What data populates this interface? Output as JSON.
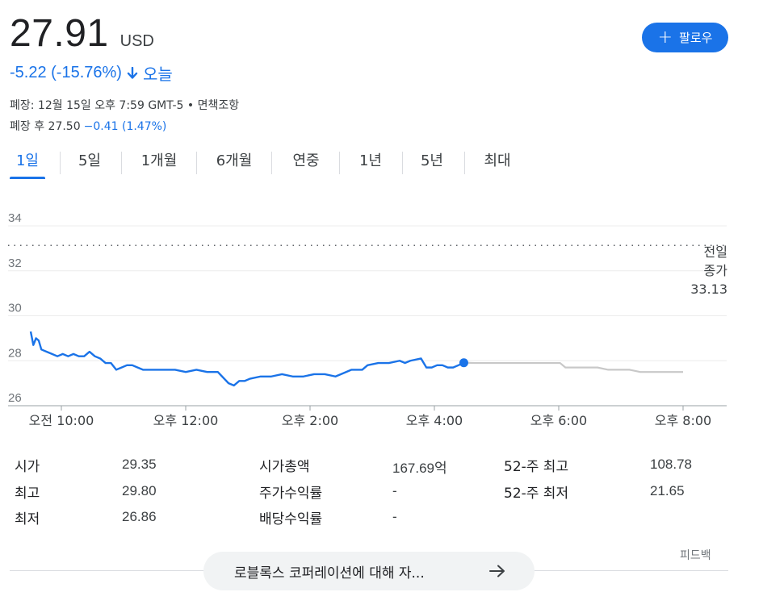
{
  "quote": {
    "price": "27.91",
    "currency": "USD",
    "change": "-5.22 (-15.76%)",
    "period": "오늘",
    "closed_info": "폐장: 12월 15일 오후 7:59 GMT-5 • 면책조항",
    "after_hours_label": "폐장 후 27.50",
    "after_hours_change": "−0.41 (1.47%)"
  },
  "follow_button": {
    "label": "팔로우"
  },
  "tabs": [
    "1일",
    "5일",
    "1개월",
    "6개월",
    "연중",
    "1년",
    "5년",
    "최대"
  ],
  "active_tab": "1일",
  "colors": {
    "accent": "#1a73e8",
    "after_hours_line": "#c8c8c8",
    "grid": "#e8eaed"
  },
  "chart_data": {
    "type": "line",
    "ylim": [
      26,
      34
    ],
    "y_ticks": [
      "34",
      "32",
      "30",
      "28",
      "26"
    ],
    "x_ticks": [
      "오전 10:00",
      "오후 12:00",
      "오후 2:00",
      "오후 4:00",
      "오후 6:00",
      "오후 8:00"
    ],
    "prev_close_label": [
      "전일",
      "종가",
      "33.13"
    ],
    "prev_close": 33.13,
    "series": [
      {
        "values": [
          [
            "09:30",
            29.3
          ],
          [
            "09:35",
            28.7
          ],
          [
            "09:40",
            29.0
          ],
          [
            "09:45",
            28.9
          ],
          [
            "09:50",
            28.5
          ],
          [
            "10:00",
            28.4
          ],
          [
            "10:10",
            28.3
          ],
          [
            "10:20",
            28.2
          ],
          [
            "10:30",
            28.3
          ],
          [
            "10:40",
            28.2
          ],
          [
            "10:50",
            28.3
          ],
          [
            "11:00",
            28.2
          ],
          [
            "11:10",
            28.2
          ],
          [
            "11:20",
            28.4
          ],
          [
            "11:30",
            28.2
          ],
          [
            "11:40",
            28.1
          ],
          [
            "11:50",
            27.9
          ],
          [
            "12:00",
            27.9
          ],
          [
            "12:10",
            27.6
          ],
          [
            "12:20",
            27.7
          ],
          [
            "12:30",
            27.8
          ],
          [
            "12:40",
            27.8
          ],
          [
            "12:50",
            27.7
          ],
          [
            "13:00",
            27.6
          ],
          [
            "13:20",
            27.6
          ],
          [
            "13:40",
            27.6
          ],
          [
            "14:00",
            27.6
          ],
          [
            "14:20",
            27.5
          ],
          [
            "14:40",
            27.6
          ],
          [
            "15:00",
            27.5
          ],
          [
            "15:20",
            27.5
          ],
          [
            "15:40",
            27.0
          ],
          [
            "15:50",
            26.9
          ],
          [
            "16:00",
            27.1
          ],
          [
            "16:10",
            27.1
          ],
          [
            "16:20",
            27.2
          ],
          [
            "16:40",
            27.3
          ],
          [
            "17:00",
            27.3
          ],
          [
            "17:20",
            27.4
          ],
          [
            "17:40",
            27.3
          ],
          [
            "18:00",
            27.3
          ],
          [
            "18:20",
            27.4
          ],
          [
            "18:40",
            27.4
          ],
          [
            "19:00",
            27.3
          ],
          [
            "19:10",
            27.4
          ],
          [
            "19:30",
            27.6
          ],
          [
            "19:50",
            27.6
          ],
          [
            "20:00",
            27.8
          ],
          [
            "20:20",
            27.9
          ],
          [
            "20:40",
            27.9
          ],
          [
            "21:00",
            28.0
          ],
          [
            "21:10",
            27.9
          ],
          [
            "21:20",
            28.0
          ],
          [
            "21:40",
            28.1
          ],
          [
            "21:50",
            27.7
          ],
          [
            "22:00",
            27.7
          ],
          [
            "22:10",
            27.8
          ],
          [
            "22:20",
            27.8
          ],
          [
            "22:30",
            27.7
          ],
          [
            "22:40",
            27.7
          ],
          [
            "22:50",
            27.8
          ],
          [
            "23:00",
            27.91
          ]
        ]
      },
      {
        "values": [
          [
            "23:00",
            27.91
          ],
          [
            "23:20",
            27.9
          ],
          [
            "23:40",
            27.9
          ],
          [
            "24:00",
            27.9
          ],
          [
            "24:20",
            27.9
          ],
          [
            "24:40",
            27.9
          ],
          [
            "25:00",
            27.9
          ],
          [
            "25:20",
            27.9
          ],
          [
            "25:40",
            27.9
          ],
          [
            "26:00",
            27.9
          ],
          [
            "26:10",
            27.7
          ],
          [
            "26:30",
            27.7
          ],
          [
            "26:50",
            27.7
          ],
          [
            "27:10",
            27.7
          ],
          [
            "27:30",
            27.6
          ],
          [
            "27:50",
            27.6
          ],
          [
            "28:10",
            27.6
          ],
          [
            "28:30",
            27.5
          ],
          [
            "28:50",
            27.5
          ],
          [
            "29:10",
            27.5
          ],
          [
            "29:30",
            27.5
          ],
          [
            "29:50",
            27.5
          ]
        ]
      }
    ]
  },
  "stats": [
    [
      {
        "label": "시가",
        "value": "29.35"
      },
      {
        "label": "시가총액",
        "value": "167.69억"
      },
      {
        "label": "52-주 최고",
        "value": "108.78"
      }
    ],
    [
      {
        "label": "최고",
        "value": "29.80"
      },
      {
        "label": "주가수익률",
        "value": "-"
      },
      {
        "label": "52-주 최저",
        "value": "21.65"
      }
    ],
    [
      {
        "label": "최저",
        "value": "26.86"
      },
      {
        "label": "배당수익률",
        "value": "-"
      },
      {
        "label": "",
        "value": ""
      }
    ]
  ],
  "feedback_label": "피드백",
  "about_button": {
    "label": "로블록스 코퍼레이션에 대해 자..."
  },
  "icons": {
    "down_arrow": "arrow-down-icon",
    "plus": "plus-icon",
    "right_arrow": "arrow-right-icon"
  }
}
